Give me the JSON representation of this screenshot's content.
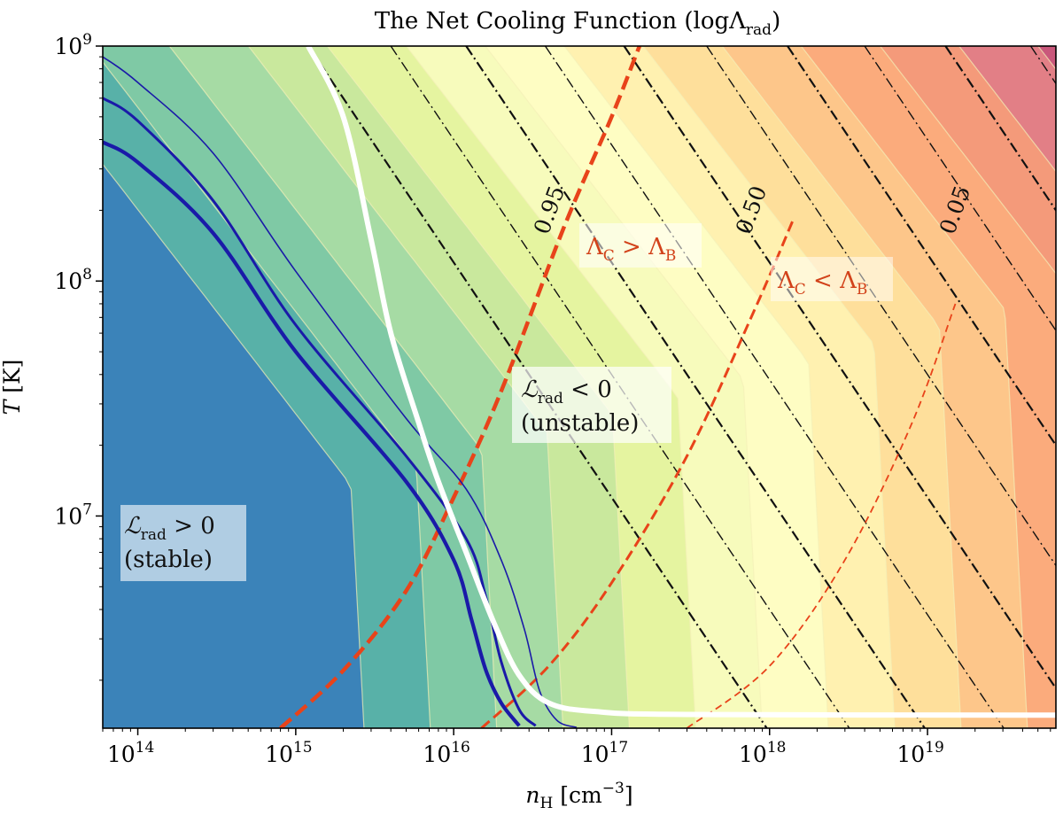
{
  "chart_data": {
    "type": "contour",
    "title": "The Net Cooling Function (logΛ",
    "title_sub": "rad",
    "title_end": ")",
    "xlabel": {
      "var": "n",
      "sub": "H",
      "unit": " [cm",
      "exp": "−3",
      "end": "]"
    },
    "ylabel": {
      "var": "T",
      "unit": " [K]"
    },
    "x_scale": "log",
    "y_scale": "log",
    "xlim": [
      60000000000000.0,
      6.5e+19
    ],
    "ylim": [
      1250000.0,
      1000000000.0
    ],
    "x_ticks": [
      {
        "base": "10",
        "exp": "14",
        "value": 100000000000000.0
      },
      {
        "base": "10",
        "exp": "15",
        "value": 1000000000000000.0
      },
      {
        "base": "10",
        "exp": "16",
        "value": 1e+16
      },
      {
        "base": "10",
        "exp": "17",
        "value": 1e+17
      },
      {
        "base": "10",
        "exp": "18",
        "value": 1e+18
      },
      {
        "base": "10",
        "exp": "19",
        "value": 1e+19
      }
    ],
    "y_ticks": [
      {
        "base": "10",
        "exp": "7",
        "value": 10000000.0
      },
      {
        "base": "10",
        "exp": "8",
        "value": 100000000.0
      },
      {
        "base": "10",
        "exp": "9",
        "value": 1000000000.0
      }
    ],
    "colors": {
      "bands": [
        "#3b83b9",
        "#58b1a8",
        "#7fc9a5",
        "#a6dba4",
        "#c9e89d",
        "#e5f4a0",
        "#f7fbbc",
        "#fefdc3",
        "#fff1b0",
        "#fedf9b",
        "#fdc68a",
        "#fbab7c",
        "#f49a7a",
        "#e27f86",
        "#c9577b"
      ],
      "stable_curve": "#1a1aa8",
      "critical_curve": "#ffffff",
      "ratio_curve": "#e8431a",
      "isobar": "#111111"
    },
    "stable_curves": [
      {
        "name": "thick",
        "points": [
          [
            60000000000000.0,
            390000000.0
          ],
          [
            100000000000000.0,
            320000000.0
          ],
          [
            300000000000000.0,
            160000000.0
          ],
          [
            1000000000000000.0,
            50000000.0
          ],
          [
            5000000000000000.0,
            14000000.0
          ],
          [
            1e+16,
            6500000.0
          ],
          [
            1.3e+16,
            3600000.0
          ],
          [
            1.6e+16,
            2200000.0
          ],
          [
            2e+16,
            1600000.0
          ],
          [
            2.6e+16,
            1280000.0
          ]
        ]
      },
      {
        "name": "medium",
        "points": [
          [
            60000000000000.0,
            600000000.0
          ],
          [
            100000000000000.0,
            480000000.0
          ],
          [
            300000000000000.0,
            220000000.0
          ],
          [
            1000000000000000.0,
            65000000.0
          ],
          [
            5000000000000000.0,
            18000000.0
          ],
          [
            1.2e+16,
            8000000.0
          ],
          [
            1.6e+16,
            4500000.0
          ],
          [
            2e+16,
            2400000.0
          ],
          [
            2.6e+16,
            1500000.0
          ],
          [
            3.3e+16,
            1280000.0
          ]
        ]
      },
      {
        "name": "thin",
        "points": [
          [
            60000000000000.0,
            900000000.0
          ],
          [
            100000000000000.0,
            700000000.0
          ],
          [
            300000000000000.0,
            350000000.0
          ],
          [
            1000000000000000.0,
            110000000.0
          ],
          [
            5000000000000000.0,
            26000000.0
          ],
          [
            1.2e+16,
            13000000.0
          ],
          [
            2e+16,
            6500000.0
          ],
          [
            2.8e+16,
            3300000.0
          ],
          [
            3.5e+16,
            1800000.0
          ],
          [
            4.5e+16,
            1350000.0
          ],
          [
            6e+16,
            1260000.0
          ]
        ]
      }
    ],
    "critical_curve": [
      [
        1200000000000000.0,
        1000000000.0
      ],
      [
        2000000000000000.0,
        500000000.0
      ],
      [
        3000000000000000.0,
        150000000.0
      ],
      [
        4000000000000000.0,
        60000000.0
      ],
      [
        6000000000000000.0,
        25000000.0
      ],
      [
        8000000000000000.0,
        14000000.0
      ],
      [
        1.2e+16,
        7000000.0
      ],
      [
        1.8e+16,
        3500000.0
      ],
      [
        2.6e+16,
        2100000.0
      ],
      [
        4e+16,
        1600000.0
      ],
      [
        8e+16,
        1470000.0
      ],
      [
        3e+17,
        1430000.0
      ],
      [
        6.5e+19,
        1420000.0
      ]
    ],
    "ratio_curves": [
      {
        "label": "0.95",
        "dash": "heavy",
        "points": [
          [
            800000000000000.0,
            1250000.0
          ],
          [
            2000000000000000.0,
            2200000.0
          ],
          [
            5000000000000000.0,
            4800000.0
          ],
          [
            1e+16,
            12000000.0
          ],
          [
            2e+16,
            34000000.0
          ],
          [
            5e+16,
            170000000.0
          ],
          [
            1e+17,
            500000000.0
          ],
          [
            1.5e+17,
            1000000000.0
          ]
        ]
      },
      {
        "label": "0.50",
        "dash": "medium",
        "points": [
          [
            1.5e+16,
            1250000.0
          ],
          [
            4e+16,
            2300000.0
          ],
          [
            1e+17,
            5200000.0
          ],
          [
            3e+17,
            18000000.0
          ],
          [
            8e+17,
            75000000.0
          ],
          [
            1.4e+18,
            180000000.0
          ]
        ]
      },
      {
        "label": "0.05",
        "dash": "light",
        "points": [
          [
            3e+17,
            1250000.0
          ],
          [
            1e+18,
            2300000.0
          ],
          [
            3e+18,
            6500000.0
          ],
          [
            8e+18,
            25000000.0
          ],
          [
            1.5e+19,
            80000000.0
          ]
        ]
      }
    ],
    "isobars": [
      {
        "x_at_T_1e9": 1200000000000000.0
      },
      {
        "x_at_T_1e9": 4000000000000000.0
      },
      {
        "x_at_T_1e9": 1.2e+16
      },
      {
        "x_at_T_1e9": 3.8e+16
      },
      {
        "x_at_T_1e9": 1.2e+17
      },
      {
        "x_at_T_1e9": 4e+17
      },
      {
        "x_at_T_1e9": 1.3e+18
      },
      {
        "x_at_T_1e9": 4e+18
      },
      {
        "x_at_T_1e9": 1.3e+19
      },
      {
        "x_at_T_1e9": 4.5e+19
      },
      {
        "x_at_T_1e9": 1.6e+20
      }
    ],
    "annotations": {
      "unstable_line1_pre": "ℒ",
      "unstable_line1_sub": "rad",
      "unstable_line1_post": " < 0",
      "unstable_line2": "(unstable)",
      "stable_line1_pre": "ℒ",
      "stable_line1_sub": "rad",
      "stable_line1_post": " > 0",
      "stable_line2": "(stable)",
      "lc_gt_pre": "Λ",
      "lc_gt_sub1": "C",
      "lc_gt_mid": " > Λ",
      "lc_gt_sub2": "B",
      "lc_lt_pre": "Λ",
      "lc_lt_sub1": "C",
      "lc_lt_mid": " < Λ",
      "lc_lt_sub2": "B"
    }
  }
}
